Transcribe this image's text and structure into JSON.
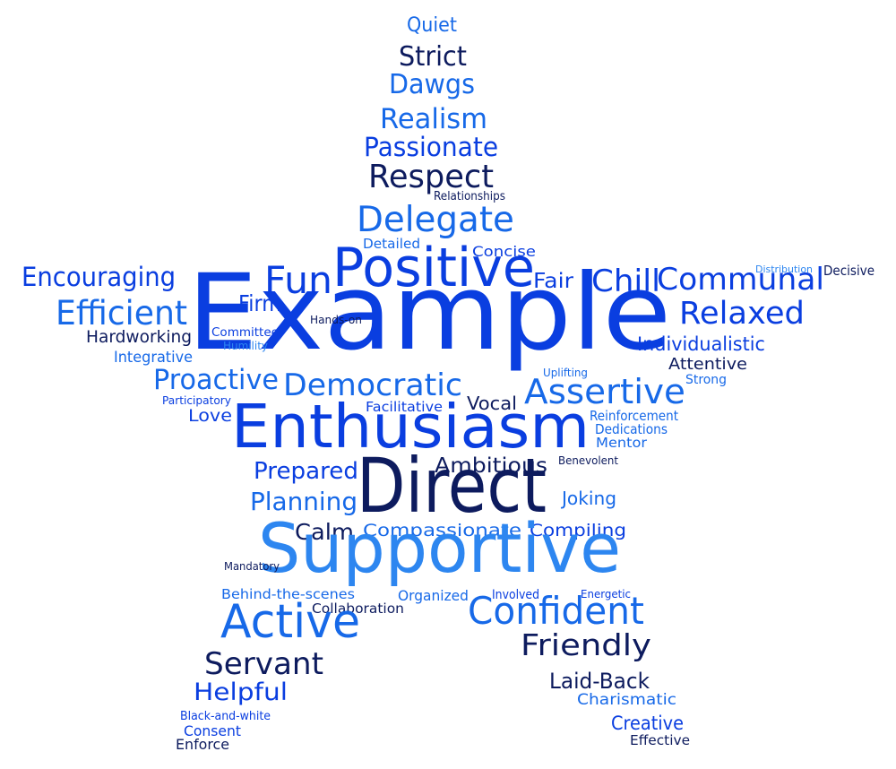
{
  "colors": {
    "navy": "#0d1b5e",
    "royal": "#0a3ee0",
    "azure": "#1769e8",
    "sky": "#2d86f0"
  },
  "words": [
    {
      "text": "Quiet",
      "color": "azure"
    },
    {
      "text": "Strict",
      "color": "navy"
    },
    {
      "text": "Dawgs",
      "color": "azure"
    },
    {
      "text": "Realism",
      "color": "azure"
    },
    {
      "text": "Passionate",
      "color": "royal"
    },
    {
      "text": "Respect",
      "color": "navy"
    },
    {
      "text": "Relationships",
      "color": "navy"
    },
    {
      "text": "Delegate",
      "color": "azure"
    },
    {
      "text": "Detailed",
      "color": "azure"
    },
    {
      "text": "Concise",
      "color": "royal"
    },
    {
      "text": "Encouraging",
      "color": "royal"
    },
    {
      "text": "Positive",
      "color": "royal"
    },
    {
      "text": "Fun",
      "color": "royal"
    },
    {
      "text": "Fair",
      "color": "royal"
    },
    {
      "text": "Chill",
      "color": "royal"
    },
    {
      "text": "Communal",
      "color": "royal"
    },
    {
      "text": "Distribution",
      "color": "sky"
    },
    {
      "text": "Decisive",
      "color": "navy"
    },
    {
      "text": "Example",
      "color": "royal"
    },
    {
      "text": "Efficient",
      "color": "azure"
    },
    {
      "text": "Firm",
      "color": "royal"
    },
    {
      "text": "Hands-on",
      "color": "navy"
    },
    {
      "text": "Relaxed",
      "color": "royal"
    },
    {
      "text": "Hardworking",
      "color": "navy"
    },
    {
      "text": "Committee",
      "color": "royal"
    },
    {
      "text": "Humility",
      "color": "sky"
    },
    {
      "text": "Individualistic",
      "color": "royal"
    },
    {
      "text": "Integrative",
      "color": "azure"
    },
    {
      "text": "Attentive",
      "color": "navy"
    },
    {
      "text": "Uplifting",
      "color": "azure"
    },
    {
      "text": "Strong",
      "color": "azure"
    },
    {
      "text": "Proactive",
      "color": "azure"
    },
    {
      "text": "Democratic",
      "color": "azure"
    },
    {
      "text": "Assertive",
      "color": "azure"
    },
    {
      "text": "Participatory",
      "color": "royal"
    },
    {
      "text": "Vocal",
      "color": "navy"
    },
    {
      "text": "Love",
      "color": "royal"
    },
    {
      "text": "Facilitative",
      "color": "royal"
    },
    {
      "text": "Enthusiasm",
      "color": "royal"
    },
    {
      "text": "Reinforcement",
      "color": "azure"
    },
    {
      "text": "Dedications",
      "color": "azure"
    },
    {
      "text": "Mentor",
      "color": "azure"
    },
    {
      "text": "Benevolent",
      "color": "navy"
    },
    {
      "text": "Ambitious",
      "color": "navy"
    },
    {
      "text": "Prepared",
      "color": "royal"
    },
    {
      "text": "Direct",
      "color": "navy"
    },
    {
      "text": "Planning",
      "color": "azure"
    },
    {
      "text": "Joking",
      "color": "azure"
    },
    {
      "text": "Calm",
      "color": "navy"
    },
    {
      "text": "Compassionate",
      "color": "azure"
    },
    {
      "text": "Compiling",
      "color": "royal"
    },
    {
      "text": "Supportive",
      "color": "sky"
    },
    {
      "text": "Mandatory",
      "color": "navy"
    },
    {
      "text": "Behind-the-scenes",
      "color": "azure"
    },
    {
      "text": "Organized",
      "color": "azure"
    },
    {
      "text": "Involved",
      "color": "royal"
    },
    {
      "text": "Energetic",
      "color": "royal"
    },
    {
      "text": "Collaboration",
      "color": "navy"
    },
    {
      "text": "Active",
      "color": "azure"
    },
    {
      "text": "Confident",
      "color": "azure"
    },
    {
      "text": "Friendly",
      "color": "navy"
    },
    {
      "text": "Servant",
      "color": "navy"
    },
    {
      "text": "Laid-Back",
      "color": "navy"
    },
    {
      "text": "Helpful",
      "color": "royal"
    },
    {
      "text": "Charismatic",
      "color": "azure"
    },
    {
      "text": "Creative",
      "color": "royal"
    },
    {
      "text": "Black-and-white",
      "color": "royal"
    },
    {
      "text": "Consent",
      "color": "royal"
    },
    {
      "text": "Enforce",
      "color": "navy"
    },
    {
      "text": "Effective",
      "color": "navy"
    }
  ]
}
